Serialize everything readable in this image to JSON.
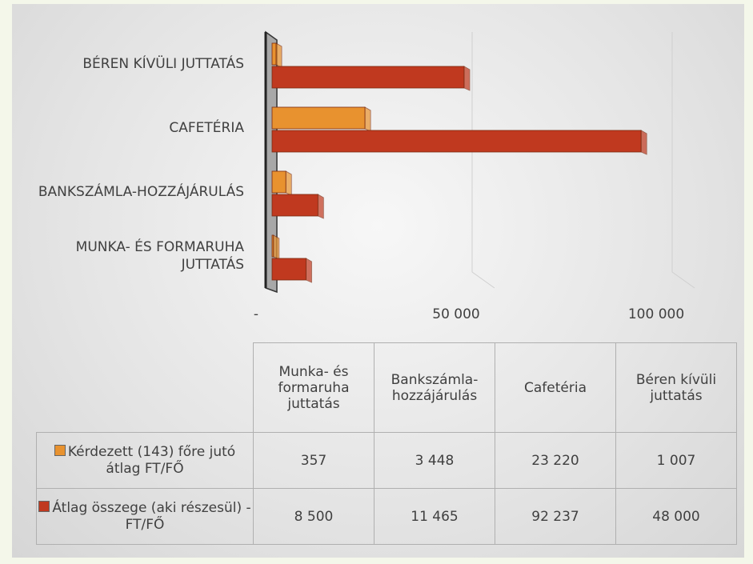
{
  "chart_data": {
    "type": "bar",
    "orientation": "horizontal",
    "categories": [
      "Munka- és formaruha juttatás",
      "Bankszámla-hozzájárulás",
      "Cafetéria",
      "Béren kívüli juttatás"
    ],
    "series": [
      {
        "name": "Kérdezett (143) főre jutó átlag FT/FŐ",
        "color": "#e8922f",
        "values": [
          357,
          3448,
          23220,
          1007
        ],
        "value_labels": [
          "357",
          "3 448",
          "23 220",
          "1 007"
        ]
      },
      {
        "name": "Átlag összege (aki részesül) - FT/FŐ",
        "color": "#c0391f",
        "values": [
          8500,
          11465,
          92237,
          48000
        ],
        "value_labels": [
          "8 500",
          "11 465",
          "92 237",
          "48 000"
        ]
      }
    ],
    "xlim": [
      0,
      100000
    ],
    "xticks": [
      {
        "value": 0,
        "label": "-"
      },
      {
        "value": 50000,
        "label": "50 000"
      },
      {
        "value": 100000,
        "label": "100 000"
      }
    ],
    "grid": true
  }
}
